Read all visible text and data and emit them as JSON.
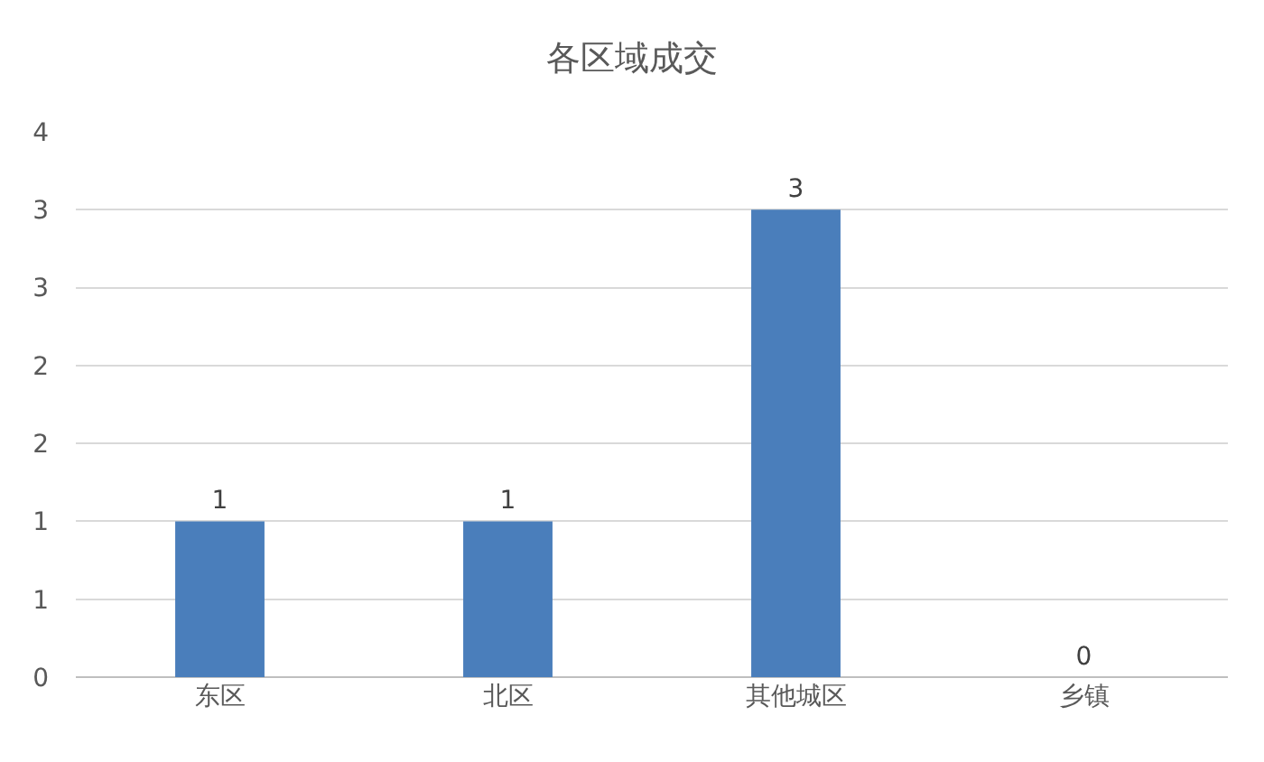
{
  "chart_data": {
    "type": "bar",
    "title": "各区域成交",
    "categories": [
      "东区",
      "北区",
      "其他城区",
      "乡镇"
    ],
    "values": [
      1,
      1,
      3,
      0
    ],
    "color": "#4a7ebb",
    "ylim": [
      0,
      3.5
    ],
    "yticks": [
      0,
      {
        "value": 0.5,
        "label": "1"
      },
      1,
      {
        "value": 1.5,
        "label": "2"
      },
      2,
      {
        "value": 2.5,
        "label": "3"
      },
      3,
      {
        "value": 3.5,
        "label": "4"
      }
    ],
    "grid": "y",
    "data_labels": true
  }
}
